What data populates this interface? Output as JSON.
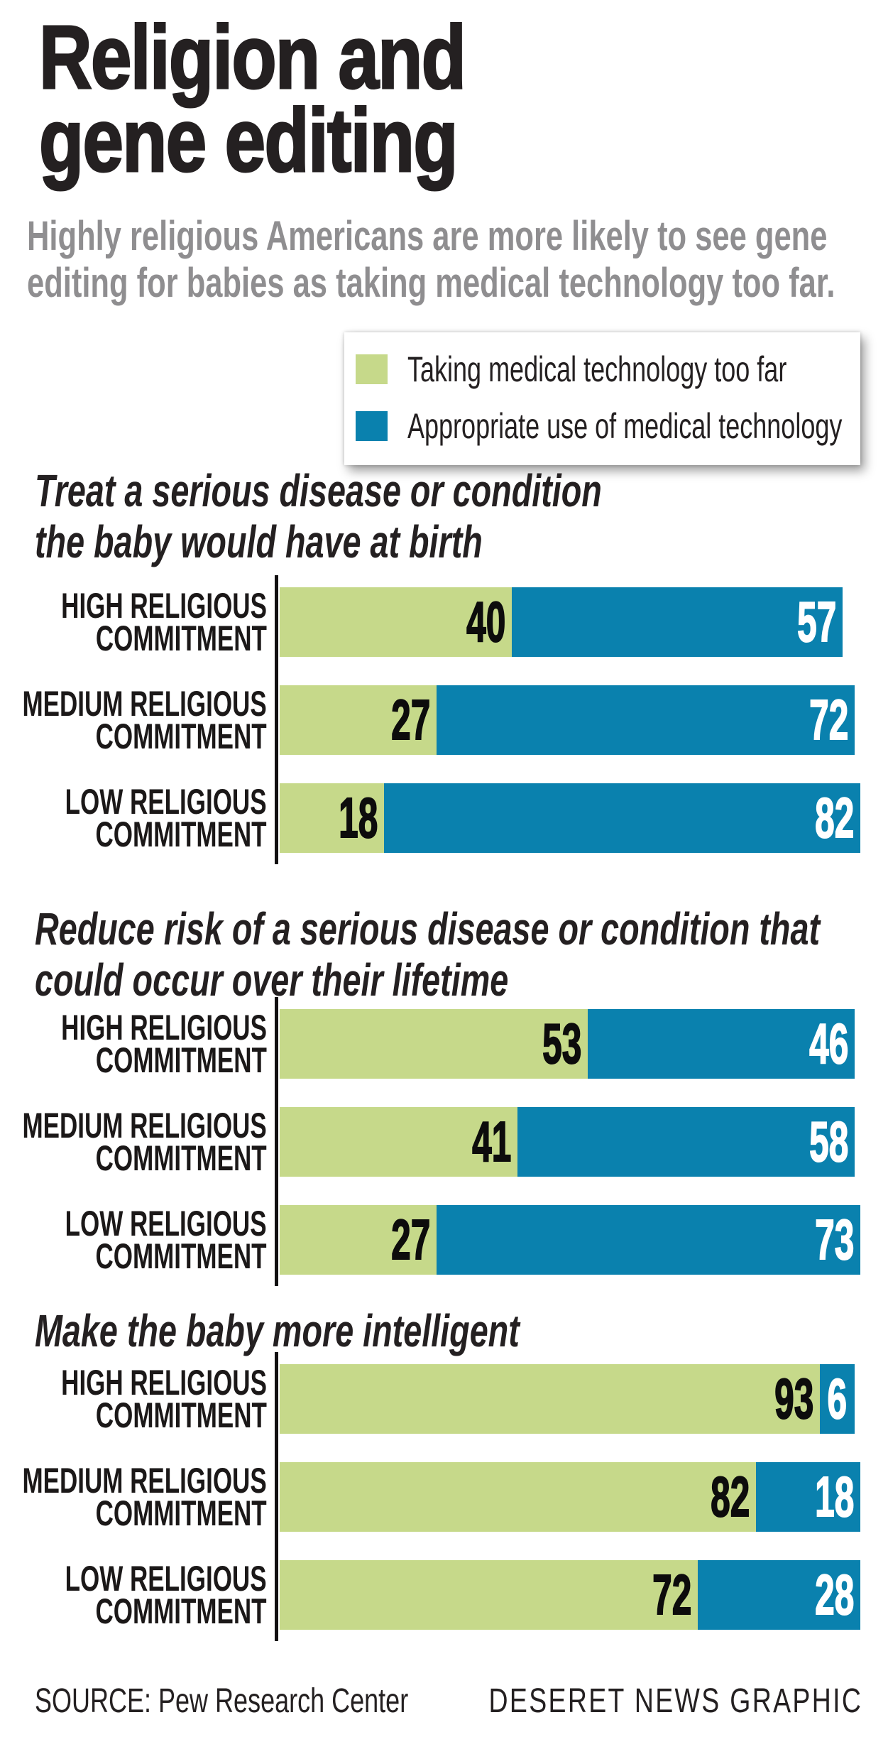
{
  "title": {
    "line1": "Religion and",
    "line2": "gene editing"
  },
  "subtitle": {
    "line1": "Highly religious Americans are more likely to see gene",
    "line2": "editing for babies as taking medical technology too far."
  },
  "legend": {
    "items": [
      {
        "label": "Taking medical technology too far",
        "color": "#c6d98a"
      },
      {
        "label": "Appropriate use of medical technology",
        "color": "#0a81ae"
      }
    ]
  },
  "chart_data": {
    "type": "bar",
    "orientation": "horizontal",
    "stacked": true,
    "unit": "percent",
    "xlim": [
      0,
      100
    ],
    "grid": false,
    "legend_position": "top-right",
    "series_names": [
      "Taking medical technology too far",
      "Appropriate use of medical technology"
    ],
    "colors": {
      "too_far": "#c6d98a",
      "appropriate": "#0a81ae"
    },
    "sections": [
      {
        "header_lines": [
          "Treat a serious disease or condition",
          "the baby would have at birth"
        ],
        "rows": [
          {
            "label_lines": [
              "HIGH RELIGIOUS",
              "COMMITMENT"
            ],
            "too_far": 40,
            "appropriate": 57
          },
          {
            "label_lines": [
              "MEDIUM RELIGIOUS",
              "COMMITMENT"
            ],
            "too_far": 27,
            "appropriate": 72
          },
          {
            "label_lines": [
              "LOW RELIGIOUS",
              "COMMITMENT"
            ],
            "too_far": 18,
            "appropriate": 82
          }
        ]
      },
      {
        "header_lines": [
          "Reduce risk of a serious disease or condition that",
          "could occur over their lifetime"
        ],
        "rows": [
          {
            "label_lines": [
              "HIGH RELIGIOUS",
              "COMMITMENT"
            ],
            "too_far": 53,
            "appropriate": 46
          },
          {
            "label_lines": [
              "MEDIUM RELIGIOUS",
              "COMMITMENT"
            ],
            "too_far": 41,
            "appropriate": 58
          },
          {
            "label_lines": [
              "LOW RELIGIOUS",
              "COMMITMENT"
            ],
            "too_far": 27,
            "appropriate": 73
          }
        ]
      },
      {
        "header_lines": [
          "Make the baby more intelligent"
        ],
        "rows": [
          {
            "label_lines": [
              "HIGH RELIGIOUS",
              "COMMITMENT"
            ],
            "too_far": 93,
            "appropriate": 6
          },
          {
            "label_lines": [
              "MEDIUM RELIGIOUS",
              "COMMITMENT"
            ],
            "too_far": 82,
            "appropriate": 18
          },
          {
            "label_lines": [
              "LOW RELIGIOUS",
              "COMMITMENT"
            ],
            "too_far": 72,
            "appropriate": 28
          }
        ]
      }
    ]
  },
  "footer": {
    "source": "SOURCE: Pew Research Center",
    "credit": "DESERET NEWS GRAPHIC"
  }
}
